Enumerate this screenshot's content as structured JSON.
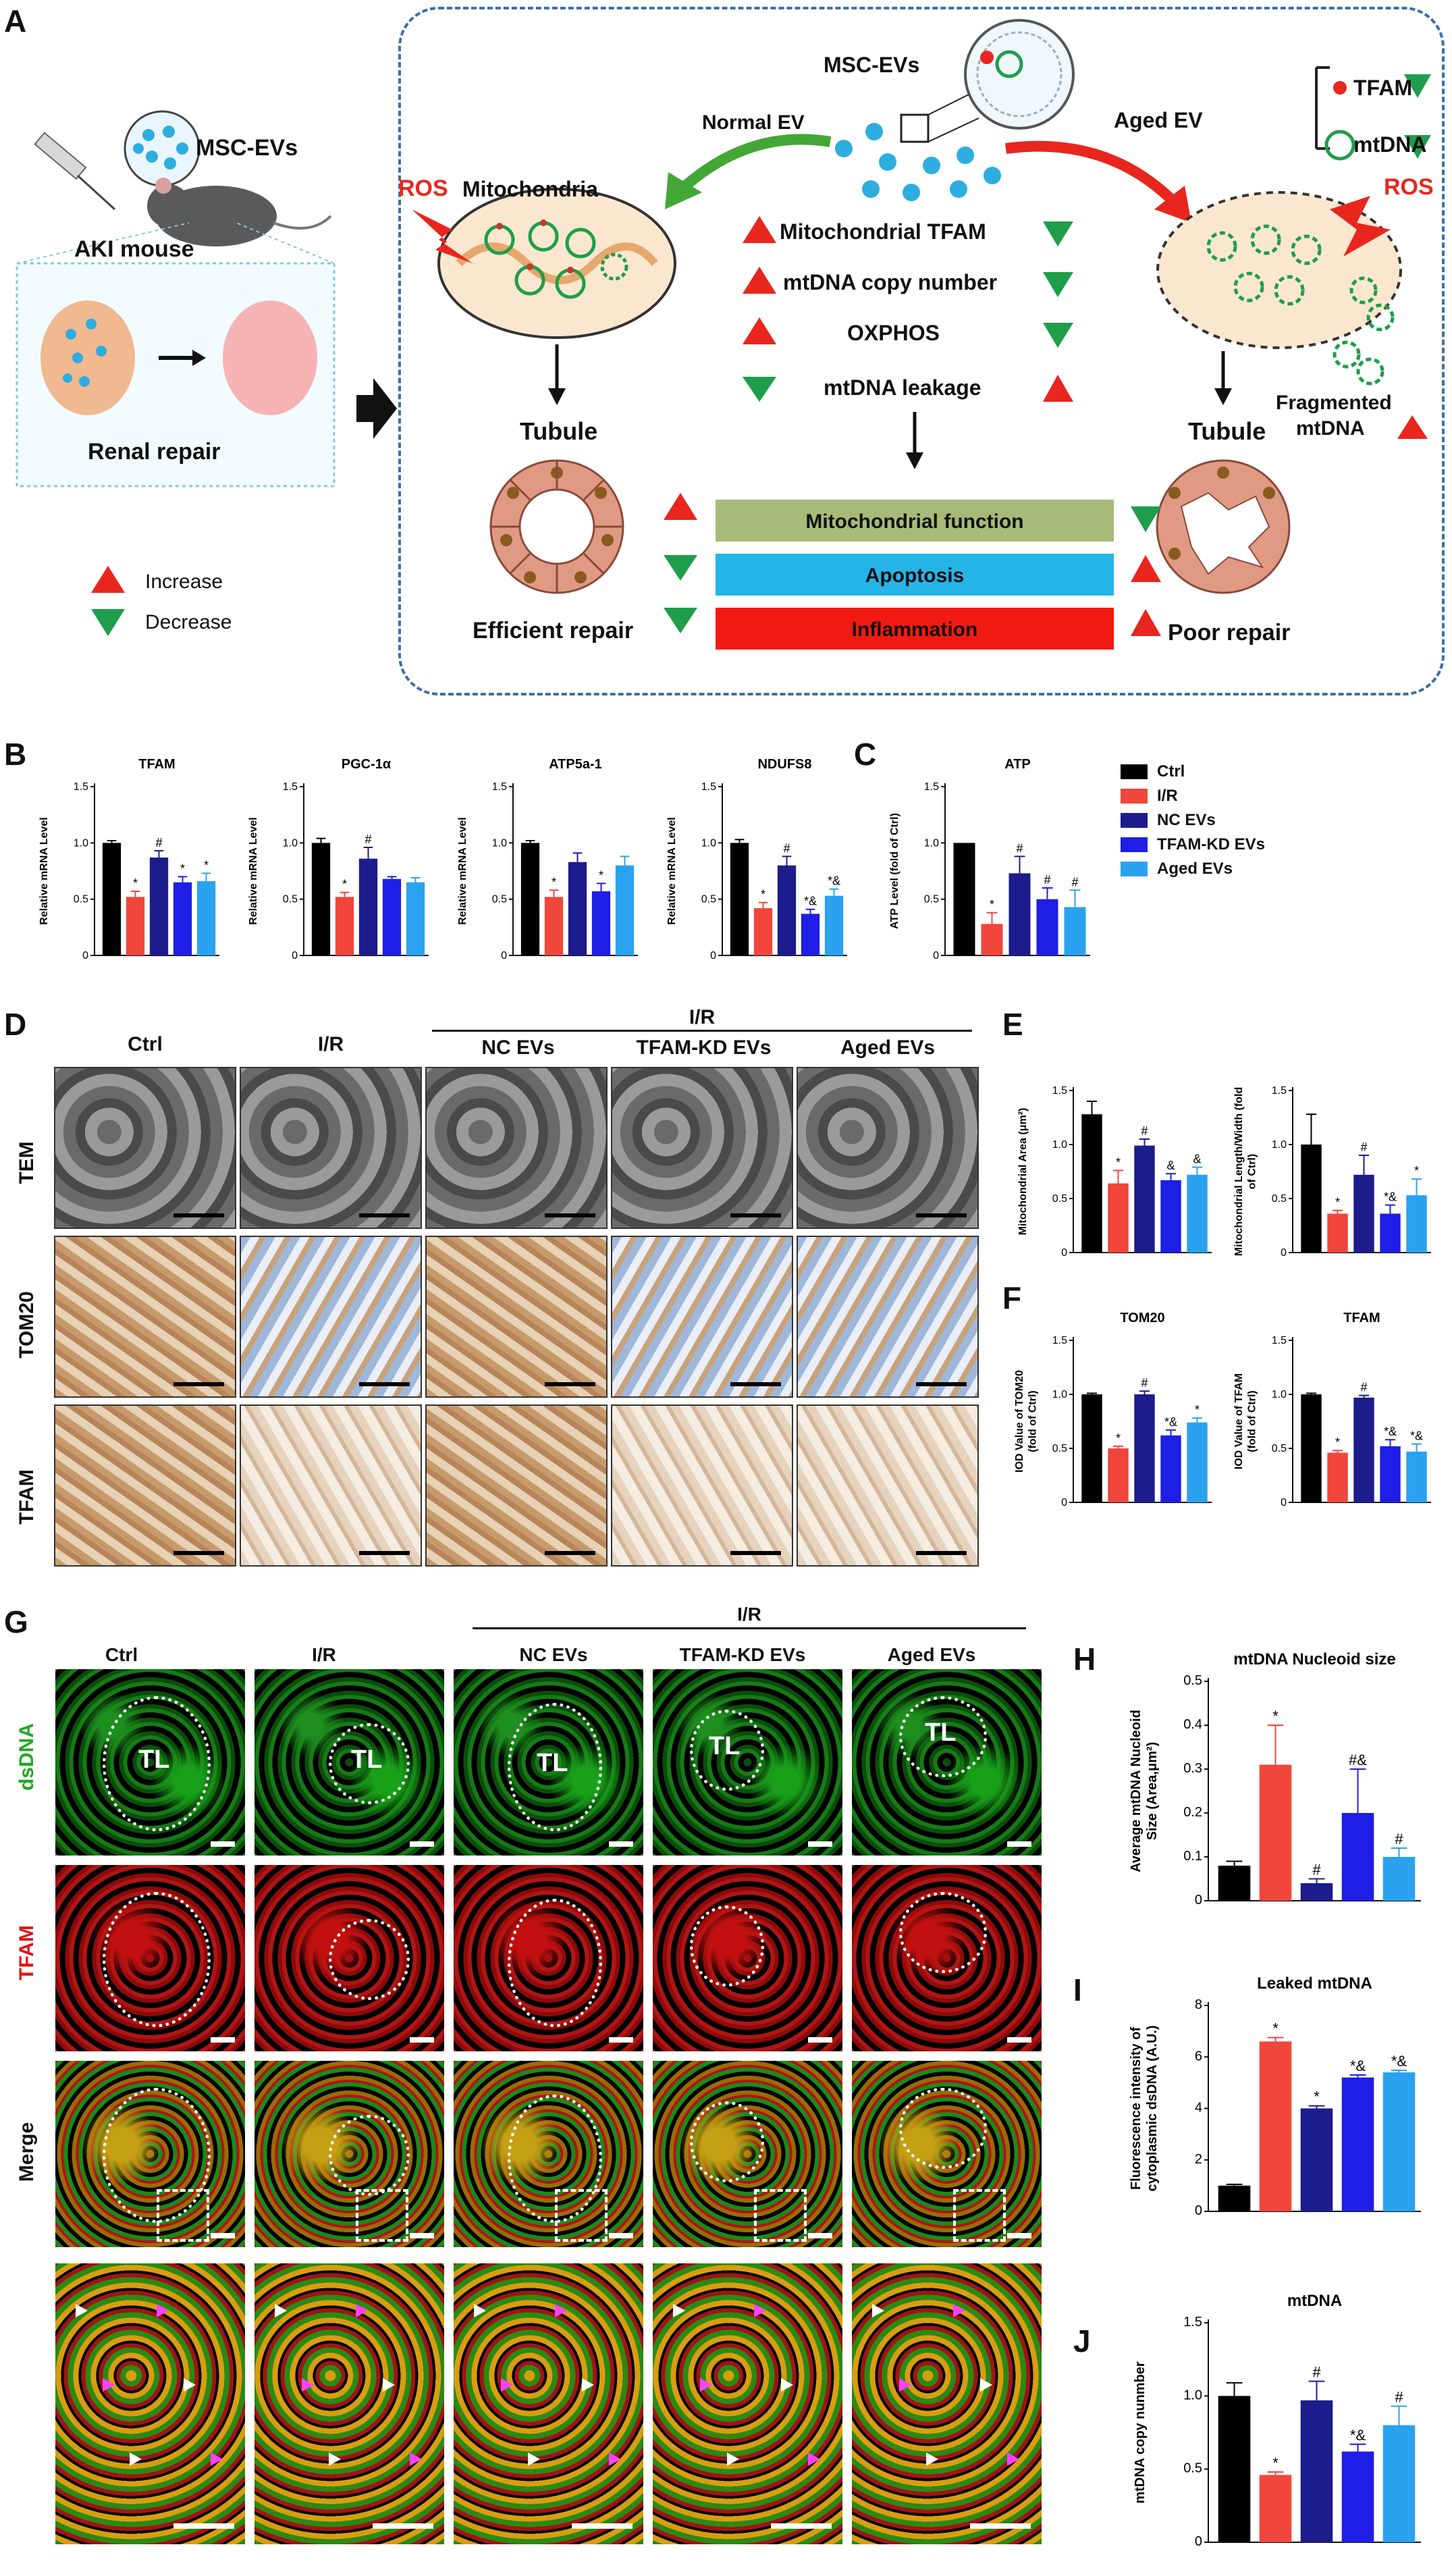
{
  "panels": {
    "A": "A",
    "B": "B",
    "C": "C",
    "D": "D",
    "E": "E",
    "F": "F",
    "G": "G",
    "H": "H",
    "I": "I",
    "J": "J"
  },
  "colors": {
    "ctrl": "#000000",
    "ir": "#f0463c",
    "nc": "#1c1c8c",
    "kd": "#1e1ee6",
    "aged": "#2aa2f0",
    "up": "#e8261e",
    "down": "#1e9e4a",
    "blue_dash": "#3a6fa8"
  },
  "schematic": {
    "msc_evs": "MSC-EVs",
    "aki_mouse": "AKI mouse",
    "renal_repair": "Renal repair",
    "increase": "Increase",
    "decrease": "Decrease",
    "normal_ev": "Normal EV",
    "aged_ev": "Aged EV",
    "tfam": "TFAM",
    "mtdna": "mtDNA",
    "ros": "ROS",
    "mitochondria": "Mitochondria",
    "changes": [
      "Mitochondrial TFAM",
      "mtDNA copy number",
      "OXPHOS",
      "mtDNA leakage"
    ],
    "tubule": "Tubule",
    "fragmented_1": "Fragmented",
    "fragmented_2": "mtDNA",
    "outcomes": [
      "Mitochondrial function",
      "Apoptosis",
      "Inflammation"
    ],
    "efficient": "Efficient repair",
    "poor": "Poor repair"
  },
  "legend": [
    "Ctrl",
    "I/R",
    "NC EVs",
    "TFAM-KD EVs",
    "Aged EVs"
  ],
  "groups": {
    "ctrl": "Ctrl",
    "ir": "I/R",
    "nc": "NC EVs",
    "kd": "TFAM-KD EVs",
    "aged": "Aged EVs"
  },
  "rows_d": [
    "TEM",
    "TOM20",
    "TFAM"
  ],
  "rows_g": [
    "dsDNA",
    "TFAM",
    "Merge"
  ],
  "tl": "TL",
  "chart_data": [
    {
      "id": "B1",
      "type": "bar",
      "title": "TFAM",
      "ylabel": "Relative mRNA Level",
      "ylim": [
        0,
        1.5
      ],
      "yticks": [
        0,
        0.5,
        1.0,
        1.5
      ],
      "values": [
        1.0,
        0.52,
        0.87,
        0.65,
        0.66
      ],
      "errors": [
        0.02,
        0.05,
        0.06,
        0.05,
        0.07
      ],
      "marks": [
        "",
        "*",
        "#",
        "*",
        "*"
      ]
    },
    {
      "id": "B2",
      "type": "bar",
      "title": "PGC-1α",
      "ylabel": "Relative mRNA Level",
      "ylim": [
        0,
        1.5
      ],
      "yticks": [
        0,
        0.5,
        1.0,
        1.5
      ],
      "values": [
        1.0,
        0.52,
        0.86,
        0.68,
        0.65
      ],
      "errors": [
        0.04,
        0.04,
        0.1,
        0.02,
        0.04
      ],
      "marks": [
        "",
        "*",
        "#",
        "",
        ""
      ]
    },
    {
      "id": "B3",
      "type": "bar",
      "title": "ATP5a-1",
      "ylabel": "Relative mRNA Level",
      "ylim": [
        0,
        1.5
      ],
      "yticks": [
        0,
        0.5,
        1.0,
        1.5
      ],
      "values": [
        1.0,
        0.52,
        0.83,
        0.57,
        0.8
      ],
      "errors": [
        0.02,
        0.06,
        0.08,
        0.07,
        0.08
      ],
      "marks": [
        "",
        "*",
        "",
        "*",
        ""
      ]
    },
    {
      "id": "B4",
      "type": "bar",
      "title": "NDUFS8",
      "ylabel": "Relative mRNA Level",
      "ylim": [
        0,
        1.5
      ],
      "yticks": [
        0,
        0.5,
        1.0,
        1.5
      ],
      "values": [
        1.0,
        0.42,
        0.8,
        0.37,
        0.53
      ],
      "errors": [
        0.03,
        0.05,
        0.08,
        0.04,
        0.06
      ],
      "marks": [
        "",
        "*",
        "#",
        "*&",
        "*&"
      ]
    },
    {
      "id": "C",
      "type": "bar",
      "title": "ATP",
      "ylabel": "ATP Level (fold of Ctrl)",
      "ylim": [
        0,
        1.5
      ],
      "yticks": [
        0,
        0.5,
        1.0,
        1.5
      ],
      "values": [
        1.0,
        0.28,
        0.73,
        0.5,
        0.43
      ],
      "errors": [
        0.0,
        0.1,
        0.15,
        0.1,
        0.15
      ],
      "marks": [
        "",
        "*",
        "#",
        "#",
        "#"
      ]
    },
    {
      "id": "E1",
      "type": "bar",
      "title": "",
      "ylabel": "Mitochondrial Area (μm²)",
      "ylim": [
        0,
        1.5
      ],
      "yticks": [
        0,
        0.5,
        1.0,
        1.5
      ],
      "values": [
        1.28,
        0.64,
        0.99,
        0.67,
        0.72
      ],
      "errors": [
        0.12,
        0.12,
        0.06,
        0.06,
        0.07
      ],
      "marks": [
        "",
        "*",
        "#",
        "&",
        "&"
      ]
    },
    {
      "id": "E2",
      "type": "bar",
      "title": "",
      "ylabel": "Mitochondrial Length/Width (fold of Ctrl)",
      "ylim": [
        0,
        1.5
      ],
      "yticks": [
        0,
        0.5,
        1.0,
        1.5
      ],
      "values": [
        1.0,
        0.36,
        0.72,
        0.36,
        0.53
      ],
      "errors": [
        0.28,
        0.03,
        0.18,
        0.08,
        0.15
      ],
      "marks": [
        "",
        "*",
        "#",
        "*&",
        "*"
      ]
    },
    {
      "id": "F1",
      "type": "bar",
      "title": "TOM20",
      "ylabel": "IOD Value of TOM20 (fold of Ctrl)",
      "ylim": [
        0,
        1.5
      ],
      "yticks": [
        0,
        0.5,
        1.0,
        1.5
      ],
      "values": [
        1.0,
        0.5,
        1.0,
        0.62,
        0.74
      ],
      "errors": [
        0.01,
        0.02,
        0.03,
        0.05,
        0.04
      ],
      "marks": [
        "",
        "*",
        "#",
        "*&",
        "*"
      ]
    },
    {
      "id": "F2",
      "type": "bar",
      "title": "TFAM",
      "ylabel": "IOD Value of TFAM (fold of Ctrl)",
      "ylim": [
        0,
        1.5
      ],
      "yticks": [
        0,
        0.5,
        1.0,
        1.5
      ],
      "values": [
        1.0,
        0.46,
        0.97,
        0.52,
        0.47
      ],
      "errors": [
        0.01,
        0.02,
        0.02,
        0.06,
        0.07
      ],
      "marks": [
        "",
        "*",
        "#",
        "*&",
        "*&"
      ]
    },
    {
      "id": "H",
      "type": "bar",
      "title": "mtDNA Nucleoid size",
      "ylabel": "Average mtDNA Nucleoid Size (Area,μm²)",
      "ylim": [
        0,
        0.5
      ],
      "yticks": [
        0,
        0.1,
        0.2,
        0.3,
        0.4,
        0.5
      ],
      "values": [
        0.08,
        0.31,
        0.04,
        0.2,
        0.1
      ],
      "errors": [
        0.01,
        0.09,
        0.01,
        0.1,
        0.02
      ],
      "marks": [
        "",
        "*",
        "#",
        "#&",
        "#"
      ]
    },
    {
      "id": "I",
      "type": "bar",
      "title": "Leaked mtDNA",
      "ylabel": "Fluorescence intensity of cytoplasmic dsDNA (A.U.)",
      "ylim": [
        0,
        8
      ],
      "yticks": [
        0,
        2,
        4,
        6,
        8
      ],
      "values": [
        1.0,
        6.6,
        4.0,
        5.2,
        5.4
      ],
      "errors": [
        0.05,
        0.15,
        0.1,
        0.1,
        0.08
      ],
      "marks": [
        "",
        "*",
        "*",
        "*&",
        "*&"
      ]
    },
    {
      "id": "J",
      "type": "bar",
      "title": "mtDNA",
      "ylabel": "mtDNA copy nunmber",
      "ylim": [
        0,
        1.5
      ],
      "yticks": [
        0,
        0.5,
        1.0,
        1.5
      ],
      "values": [
        1.0,
        0.46,
        0.97,
        0.62,
        0.8
      ],
      "errors": [
        0.09,
        0.02,
        0.13,
        0.05,
        0.13
      ],
      "marks": [
        "",
        "*",
        "#",
        "*&",
        "#"
      ]
    }
  ]
}
